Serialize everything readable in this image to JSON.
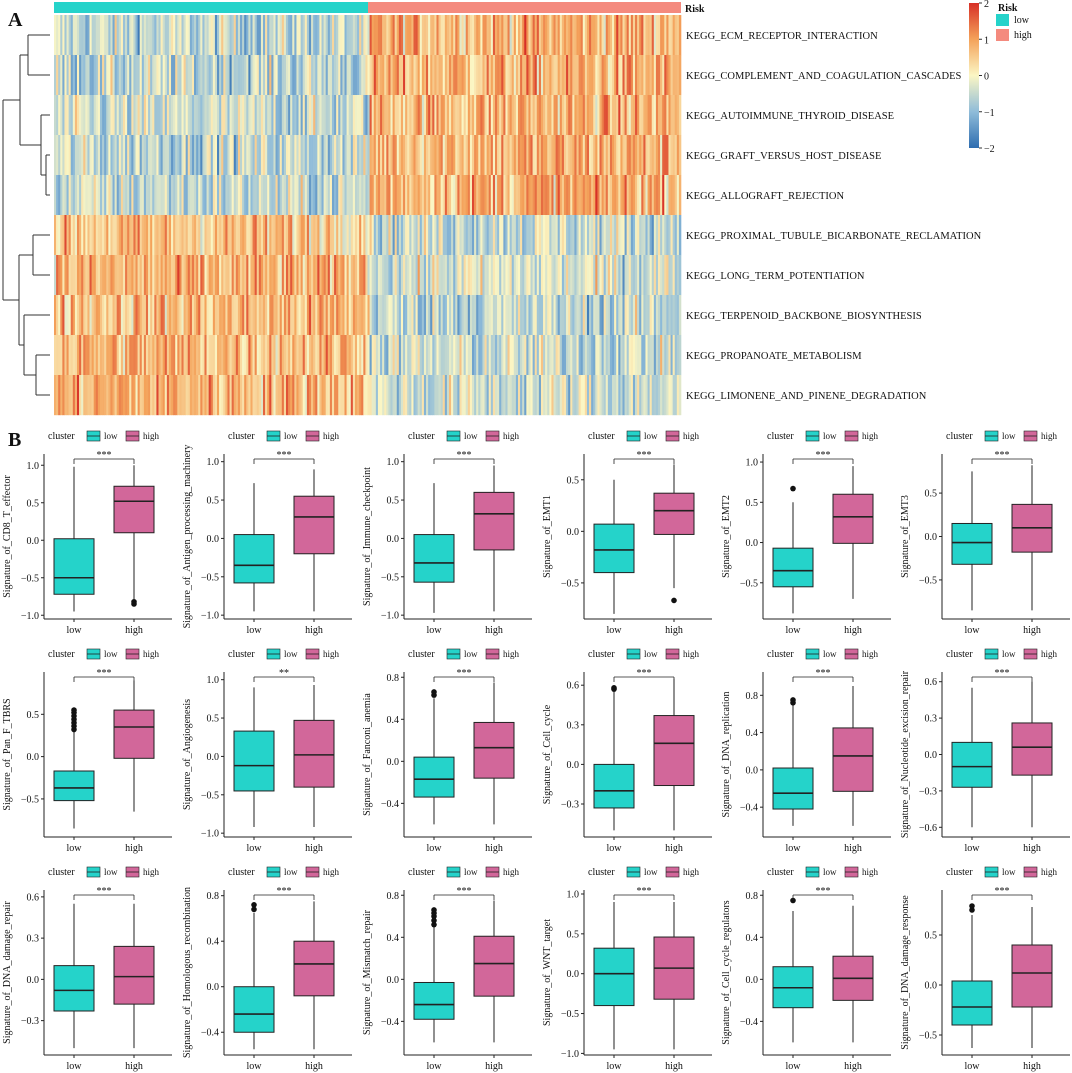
{
  "panel_a_label": "A",
  "panel_b_label": "B",
  "colors": {
    "low": "#25d3ca",
    "high": "#f48a7e",
    "box_high": "#d2679a",
    "heat_low": "#2e6db0",
    "heat_mid": "#fbf6c4",
    "heat_high": "#d73027"
  },
  "chart_data": [
    {
      "type": "heatmap",
      "annotation_label": "Risk",
      "legend": {
        "title": "Risk",
        "items": [
          {
            "label": "low",
            "color": "#25d3ca"
          },
          {
            "label": "high",
            "color": "#f48a7e"
          }
        ]
      },
      "color_scale": {
        "min": -2,
        "max": 2,
        "ticks": [
          "2",
          "1",
          "0",
          "−1",
          "−2"
        ]
      },
      "groups": [
        "low",
        "high"
      ],
      "rows": [
        {
          "label": "KEGG_ECM_RECEPTOR_INTERACTION",
          "low_mean": -0.55,
          "high_mean": 0.8
        },
        {
          "label": "KEGG_COMPLEMENT_AND_COAGULATION_CASCADES",
          "low_mean": -0.55,
          "high_mean": 0.75
        },
        {
          "label": "KEGG_AUTOIMMUNE_THYROID_DISEASE",
          "low_mean": -0.5,
          "high_mean": 0.75
        },
        {
          "label": "KEGG_GRAFT_VERSUS_HOST_DISEASE",
          "low_mean": -0.5,
          "high_mean": 0.8
        },
        {
          "label": "KEGG_ALLOGRAFT_REJECTION",
          "low_mean": -0.5,
          "high_mean": 0.85
        },
        {
          "label": "KEGG_PROXIMAL_TUBULE_BICARBONATE_RECLAMATION",
          "low_mean": 0.6,
          "high_mean": -0.4
        },
        {
          "label": "KEGG_LONG_TERM_POTENTIATION",
          "low_mean": 0.7,
          "high_mean": -0.3
        },
        {
          "label": "KEGG_TERPENOID_BACKBONE_BIOSYNTHESIS",
          "low_mean": 0.7,
          "high_mean": -0.55
        },
        {
          "label": "KEGG_PROPANOATE_METABOLISM",
          "low_mean": 0.75,
          "high_mean": -0.45
        },
        {
          "label": "KEGG_LIMONENE_AND_PINENE_DEGRADATION",
          "low_mean": 0.8,
          "high_mean": -0.4
        }
      ]
    },
    {
      "type": "boxplot",
      "legend_title": "cluster",
      "legend_labels": [
        "low",
        "high"
      ],
      "categories": [
        "low",
        "high"
      ],
      "plots": [
        {
          "ylabel": "Signature_of_CD8_T_effector",
          "sig": "***",
          "ylim": [
            -1.05,
            1.15
          ],
          "yticks": [
            "1.0",
            "0.5",
            "0.0",
            "−0.5",
            "−1.0"
          ],
          "ytick_values": [
            1,
            0.5,
            0,
            -0.5,
            -1
          ],
          "low": {
            "min": -0.95,
            "q1": -0.72,
            "median": -0.5,
            "q3": 0.02,
            "max": 0.98,
            "outliers": []
          },
          "high": {
            "min": -0.8,
            "q1": 0.1,
            "median": 0.52,
            "q3": 0.72,
            "max": 1.0,
            "outliers": [
              -0.82,
              -0.85
            ]
          }
        },
        {
          "ylabel": "Signature_of_Antigen_processing_machinery",
          "sig": "***",
          "ylim": [
            -1.05,
            1.1
          ],
          "yticks": [
            "1.0",
            "0.5",
            "0.0",
            "−0.5",
            "−1.0"
          ],
          "ytick_values": [
            1,
            0.5,
            0,
            -0.5,
            -1
          ],
          "low": {
            "min": -0.95,
            "q1": -0.58,
            "median": -0.35,
            "q3": 0.05,
            "max": 0.72,
            "outliers": []
          },
          "high": {
            "min": -0.95,
            "q1": -0.2,
            "median": 0.28,
            "q3": 0.55,
            "max": 0.9,
            "outliers": []
          }
        },
        {
          "ylabel": "Signature_of_Immune_checkpoint",
          "sig": "***",
          "ylim": [
            -1.05,
            1.1
          ],
          "yticks": [
            "1.0",
            "0.5",
            "0.0",
            "−0.5",
            "−1.0"
          ],
          "ytick_values": [
            1,
            0.5,
            0,
            -0.5,
            -1
          ],
          "low": {
            "min": -0.97,
            "q1": -0.57,
            "median": -0.32,
            "q3": 0.05,
            "max": 0.72,
            "outliers": []
          },
          "high": {
            "min": -0.95,
            "q1": -0.15,
            "median": 0.32,
            "q3": 0.6,
            "max": 0.95,
            "outliers": []
          }
        },
        {
          "ylabel": "Signature_of_EMT1",
          "sig": "***",
          "ylim": [
            -0.85,
            0.75
          ],
          "yticks": [
            "0.5",
            "0.0",
            "−0.5"
          ],
          "ytick_values": [
            0.5,
            0,
            -0.5
          ],
          "low": {
            "min": -0.8,
            "q1": -0.4,
            "median": -0.18,
            "q3": 0.07,
            "max": 0.5,
            "outliers": []
          },
          "high": {
            "min": -0.55,
            "q1": -0.03,
            "median": 0.2,
            "q3": 0.37,
            "max": 0.65,
            "outliers": [
              -0.67
            ]
          }
        },
        {
          "ylabel": "Signature_of_EMT2",
          "sig": "***",
          "ylim": [
            -0.95,
            1.1
          ],
          "yticks": [
            "1.0",
            "0.5",
            "0.0",
            "−0.5"
          ],
          "ytick_values": [
            1,
            0.5,
            0,
            -0.5
          ],
          "low": {
            "min": -0.88,
            "q1": -0.55,
            "median": -0.35,
            "q3": -0.07,
            "max": 0.5,
            "outliers": [
              0.67
            ]
          },
          "high": {
            "min": -0.7,
            "q1": -0.01,
            "median": 0.32,
            "q3": 0.6,
            "max": 0.95,
            "outliers": []
          }
        },
        {
          "ylabel": "Signature_of_EMT3",
          "sig": "***",
          "ylim": [
            -0.95,
            0.95
          ],
          "yticks": [
            "0.5",
            "0.0",
            "−0.5"
          ],
          "ytick_values": [
            0.5,
            0,
            -0.5
          ],
          "low": {
            "min": -0.85,
            "q1": -0.32,
            "median": -0.07,
            "q3": 0.15,
            "max": 0.75,
            "outliers": []
          },
          "high": {
            "min": -0.85,
            "q1": -0.18,
            "median": 0.1,
            "q3": 0.37,
            "max": 0.82,
            "outliers": []
          }
        },
        {
          "ylabel": "Signature_of_Pan_F_TBRS",
          "sig": "***",
          "ylim": [
            -0.95,
            1.0
          ],
          "yticks": [
            "0.5",
            "0.0",
            "−0.5"
          ],
          "ytick_values": [
            0.5,
            0,
            -0.5
          ],
          "low": {
            "min": -0.85,
            "q1": -0.52,
            "median": -0.37,
            "q3": -0.17,
            "max": 0.3,
            "outliers": [
              0.32,
              0.36,
              0.4,
              0.44,
              0.48,
              0.52,
              0.55
            ]
          },
          "high": {
            "min": -0.65,
            "q1": -0.02,
            "median": 0.35,
            "q3": 0.55,
            "max": 0.9,
            "outliers": []
          }
        },
        {
          "ylabel": "Signature_of_Angiogenesis",
          "sig": "**",
          "ylim": [
            -1.05,
            1.1
          ],
          "yticks": [
            "1.0",
            "0.5",
            "0.0",
            "−0.5",
            "−1.0"
          ],
          "ytick_values": [
            1,
            0.5,
            0,
            -0.5,
            -1
          ],
          "low": {
            "min": -0.92,
            "q1": -0.45,
            "median": -0.12,
            "q3": 0.33,
            "max": 0.9,
            "outliers": []
          },
          "high": {
            "min": -0.92,
            "q1": -0.4,
            "median": 0.02,
            "q3": 0.47,
            "max": 0.93,
            "outliers": []
          }
        },
        {
          "ylabel": "Signature_of_Fanconi_anemia",
          "sig": "***",
          "ylim": [
            -0.72,
            0.85
          ],
          "yticks": [
            "0.8",
            "0.4",
            "0.0",
            "−0.4"
          ],
          "ytick_values": [
            0.8,
            0.4,
            0,
            -0.4
          ],
          "low": {
            "min": -0.6,
            "q1": -0.34,
            "median": -0.17,
            "q3": 0.04,
            "max": 0.6,
            "outliers": [
              0.63,
              0.66
            ]
          },
          "high": {
            "min": -0.6,
            "q1": -0.16,
            "median": 0.13,
            "q3": 0.37,
            "max": 0.75,
            "outliers": []
          }
        },
        {
          "ylabel": "Signature_of_Cell_cycle",
          "sig": "***",
          "ylim": [
            -0.55,
            0.7
          ],
          "yticks": [
            "0.6",
            "0.3",
            "0.0",
            "−0.3"
          ],
          "ytick_values": [
            0.6,
            0.3,
            0,
            -0.3
          ],
          "low": {
            "min": -0.5,
            "q1": -0.33,
            "median": -0.2,
            "q3": 0.0,
            "max": 0.55,
            "outliers": [
              0.57,
              0.58
            ]
          },
          "high": {
            "min": -0.5,
            "q1": -0.16,
            "median": 0.16,
            "q3": 0.37,
            "max": 0.65,
            "outliers": []
          }
        },
        {
          "ylabel": "Signature_of_DNA_replication",
          "sig": "***",
          "ylim": [
            -0.72,
            1.05
          ],
          "yticks": [
            "0.8",
            "0.4",
            "0.0",
            "−0.4"
          ],
          "ytick_values": [
            0.8,
            0.4,
            0,
            -0.4
          ],
          "low": {
            "min": -0.6,
            "q1": -0.42,
            "median": -0.25,
            "q3": 0.02,
            "max": 0.7,
            "outliers": [
              0.72,
              0.75
            ]
          },
          "high": {
            "min": -0.6,
            "q1": -0.23,
            "median": 0.15,
            "q3": 0.45,
            "max": 0.9,
            "outliers": []
          }
        },
        {
          "ylabel": "Signature_of_Nucleotide_excision_repair",
          "sig": "***",
          "ylim": [
            -0.68,
            0.68
          ],
          "yticks": [
            "0.6",
            "0.3",
            "0.0",
            "−0.3",
            "−0.6"
          ],
          "ytick_values": [
            0.6,
            0.3,
            0,
            -0.3,
            -0.6
          ],
          "low": {
            "min": -0.6,
            "q1": -0.27,
            "median": -0.1,
            "q3": 0.1,
            "max": 0.55,
            "outliers": []
          },
          "high": {
            "min": -0.6,
            "q1": -0.17,
            "median": 0.06,
            "q3": 0.26,
            "max": 0.6,
            "outliers": []
          }
        },
        {
          "ylabel": "Signature_of_DNA_damage_repair",
          "sig": "***",
          "ylim": [
            -0.55,
            0.65
          ],
          "yticks": [
            "0.6",
            "0.3",
            "0.0",
            "−0.3"
          ],
          "ytick_values": [
            0.6,
            0.3,
            0,
            -0.3
          ],
          "low": {
            "min": -0.5,
            "q1": -0.23,
            "median": -0.08,
            "q3": 0.1,
            "max": 0.55,
            "outliers": []
          },
          "high": {
            "min": -0.5,
            "q1": -0.18,
            "median": 0.02,
            "q3": 0.24,
            "max": 0.55,
            "outliers": []
          }
        },
        {
          "ylabel": "Signature_of_Homologous_recombination",
          "sig": "***",
          "ylim": [
            -0.6,
            0.85
          ],
          "yticks": [
            "0.8",
            "0.4",
            "0.0",
            "−0.4"
          ],
          "ytick_values": [
            0.8,
            0.4,
            0,
            -0.4
          ],
          "low": {
            "min": -0.55,
            "q1": -0.4,
            "median": -0.24,
            "q3": 0.0,
            "max": 0.65,
            "outliers": [
              0.68,
              0.72
            ]
          },
          "high": {
            "min": -0.55,
            "q1": -0.08,
            "median": 0.2,
            "q3": 0.4,
            "max": 0.75,
            "outliers": []
          }
        },
        {
          "ylabel": "Signature_of_Mismatch_repair",
          "sig": "***",
          "ylim": [
            -0.72,
            0.85
          ],
          "yticks": [
            "0.8",
            "0.4",
            "0.0",
            "−0.4"
          ],
          "ytick_values": [
            0.8,
            0.4,
            0,
            -0.4
          ],
          "low": {
            "min": -0.6,
            "q1": -0.38,
            "median": -0.24,
            "q3": -0.03,
            "max": 0.5,
            "outliers": [
              0.52,
              0.56,
              0.6,
              0.63,
              0.66
            ]
          },
          "high": {
            "min": -0.6,
            "q1": -0.16,
            "median": 0.15,
            "q3": 0.41,
            "max": 0.75,
            "outliers": []
          }
        },
        {
          "ylabel": "Signature_of_WNT_target",
          "sig": "***",
          "ylim": [
            -1.02,
            1.05
          ],
          "yticks": [
            "1.0",
            "0.5",
            "0.0",
            "−0.5",
            "−1.0"
          ],
          "ytick_values": [
            1,
            0.5,
            0,
            -0.5,
            -1
          ],
          "low": {
            "min": -0.95,
            "q1": -0.4,
            "median": 0.0,
            "q3": 0.32,
            "max": 0.9,
            "outliers": []
          },
          "high": {
            "min": -0.95,
            "q1": -0.32,
            "median": 0.07,
            "q3": 0.46,
            "max": 0.9,
            "outliers": []
          }
        },
        {
          "ylabel": "Signature_of_Cell_cycle_regulators",
          "sig": "***",
          "ylim": [
            -0.72,
            0.85
          ],
          "yticks": [
            "0.8",
            "0.4",
            "0.0",
            "−0.4"
          ],
          "ytick_values": [
            0.8,
            0.4,
            0,
            -0.4
          ],
          "low": {
            "min": -0.6,
            "q1": -0.27,
            "median": -0.08,
            "q3": 0.12,
            "max": 0.65,
            "outliers": [
              0.75
            ]
          },
          "high": {
            "min": -0.6,
            "q1": -0.2,
            "median": 0.01,
            "q3": 0.22,
            "max": 0.7,
            "outliers": []
          }
        },
        {
          "ylabel": "Signature_of_DNA_damage_response",
          "sig": "***",
          "ylim": [
            -0.7,
            0.95
          ],
          "yticks": [
            "0.5",
            "0.0",
            "−0.5"
          ],
          "ytick_values": [
            0.5,
            0,
            -0.5
          ],
          "low": {
            "min": -0.63,
            "q1": -0.4,
            "median": -0.22,
            "q3": 0.04,
            "max": 0.7,
            "outliers": [
              0.75,
              0.79
            ]
          },
          "high": {
            "min": -0.63,
            "q1": -0.22,
            "median": 0.12,
            "q3": 0.4,
            "max": 0.78,
            "outliers": []
          }
        }
      ]
    }
  ]
}
